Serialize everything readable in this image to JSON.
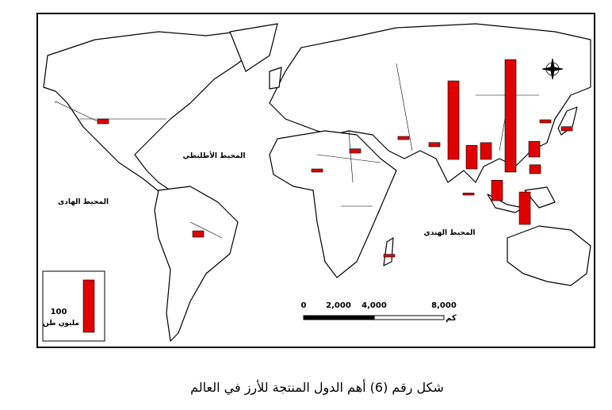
{
  "map": {
    "ocean_labels": [
      "المحيط الأطلنطي",
      "المحيط الهادى",
      "المحيط الهندي"
    ],
    "bars": [
      9,
      12,
      8,
      6,
      6,
      8,
      150,
      45,
      32,
      215,
      6,
      8,
      30,
      17,
      39,
      62,
      4,
      5
    ],
    "bar_color": "#e00000",
    "legend": {
      "value": 100,
      "unit": "مليون طن"
    },
    "scale_labels": [
      "0",
      "2,000",
      "4,000",
      "8,000"
    ],
    "scale_unit": "كم",
    "caption": "شكل رقم (6) أهم الدول المنتجة للأرز في العالم"
  }
}
